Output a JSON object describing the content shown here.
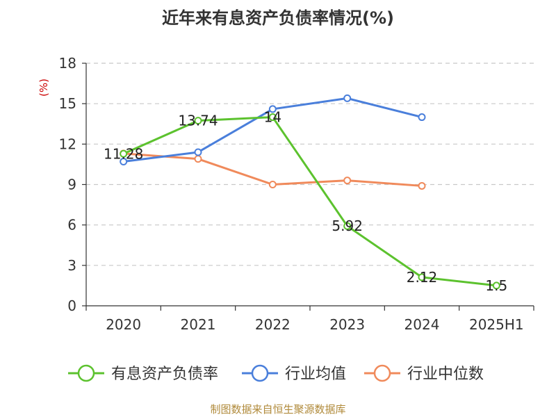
{
  "chart_data": {
    "type": "line",
    "title": "近年来有息资产负债率情况(%)",
    "y_unit": "(%)",
    "categories": [
      "2020",
      "2021",
      "2022",
      "2023",
      "2024",
      "2025H1"
    ],
    "ylim": [
      0,
      18
    ],
    "yticks": [
      0,
      3,
      6,
      9,
      12,
      15,
      18
    ],
    "grid": true,
    "legend_position": "bottom",
    "series": [
      {
        "name": "有息资产负债率",
        "color": "#5cc22e",
        "values": [
          11.28,
          13.74,
          14,
          5.92,
          2.12,
          1.5
        ],
        "labels": [
          "11.28",
          "13.74",
          "14",
          "5.92",
          "2.12",
          "1.5"
        ]
      },
      {
        "name": "行业均值",
        "color": "#4a7fdb",
        "values": [
          10.7,
          11.4,
          14.6,
          15.4,
          14.0,
          null
        ]
      },
      {
        "name": "行业中位数",
        "color": "#f08a5b",
        "values": [
          11.3,
          10.9,
          9.0,
          9.3,
          8.9,
          null
        ]
      }
    ],
    "source": "制图数据来自恒生聚源数据库"
  }
}
